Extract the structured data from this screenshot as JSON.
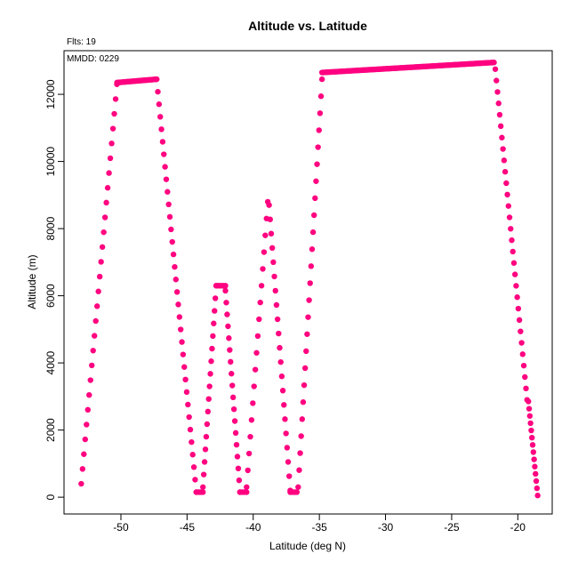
{
  "chart_data": {
    "type": "scatter",
    "title": "Altitude vs. Latitude",
    "annotations": [
      "Flts: 19",
      "MMDD: 0229"
    ],
    "xlabel": "Latitude (deg N)",
    "ylabel": "Altitude (m)",
    "xlim": [
      -54.3,
      -17.4
    ],
    "ylim": [
      -500,
      13300
    ],
    "xticks": [
      -50,
      -45,
      -40,
      -35,
      -30,
      -25,
      -20
    ],
    "yticks": [
      0,
      2000,
      4000,
      6000,
      8000,
      10000,
      12000
    ],
    "grid": false,
    "color": "#FF0080",
    "series": [
      {
        "segments": [
          [
            [
              -53.0,
              400
            ],
            [
              -50.3,
              12300
            ],
            28
          ],
          [
            [
              -50.3,
              12350
            ],
            [
              -47.3,
              12450
            ],
            45
          ],
          [
            [
              -47.3,
              12450
            ],
            [
              -44.3,
              150
            ],
            34
          ],
          [
            [
              -44.3,
              150
            ],
            [
              -43.8,
              150
            ],
            5
          ],
          [
            [
              -43.8,
              300
            ],
            [
              -42.8,
              6300
            ],
            17
          ],
          [
            [
              -42.8,
              6300
            ],
            [
              -42.1,
              6300
            ],
            7
          ],
          [
            [
              -42.1,
              6150
            ],
            [
              -41.0,
              150
            ],
            18
          ],
          [
            [
              -41.0,
              150
            ],
            [
              -40.5,
              150
            ],
            4
          ],
          [
            [
              -40.5,
              300
            ],
            [
              -38.9,
              8800
            ],
            18
          ],
          [
            [
              -38.8,
              8700
            ],
            [
              -37.2,
              200
            ],
            21
          ],
          [
            [
              -37.2,
              150
            ],
            [
              -36.7,
              150
            ],
            5
          ],
          [
            [
              -36.6,
              300
            ],
            [
              -34.8,
              12450
            ],
            25
          ],
          [
            [
              -34.8,
              12650
            ],
            [
              -21.8,
              12950
            ],
            150
          ],
          [
            [
              -21.7,
              12750
            ],
            [
              -19.3,
              2900
            ],
            30
          ],
          [
            [
              -19.2,
              2850
            ],
            [
              -18.5,
              50
            ],
            14
          ]
        ]
      }
    ]
  }
}
